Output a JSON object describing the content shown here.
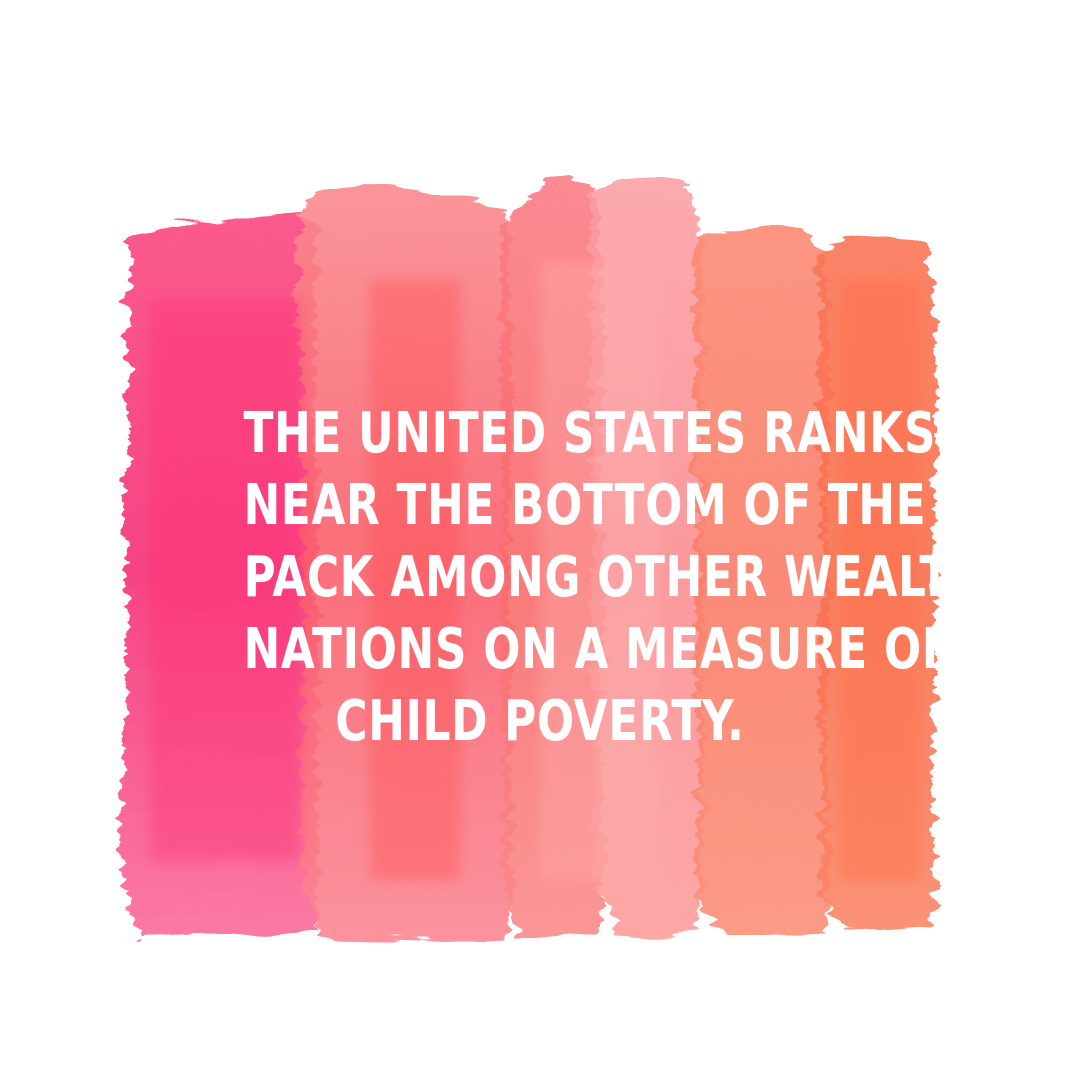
{
  "quote": {
    "lines": [
      "THE UNITED STATES RANKS",
      "NEAR THE BOTTOM OF THE",
      "PACK AMONG OTHER WEALTHY",
      "NATIONS ON A MEASURE OF",
      "CHILD POVERTY."
    ]
  },
  "colors": {
    "background": "#ffffff",
    "text": "#ffffff",
    "stroke_palette": [
      "#f7347a",
      "#fa5f78",
      "#f96a6a",
      "#f98b8e",
      "#fa7d68",
      "#f9704f"
    ]
  },
  "icons": {
    "background_art": "watercolor-stripes"
  }
}
